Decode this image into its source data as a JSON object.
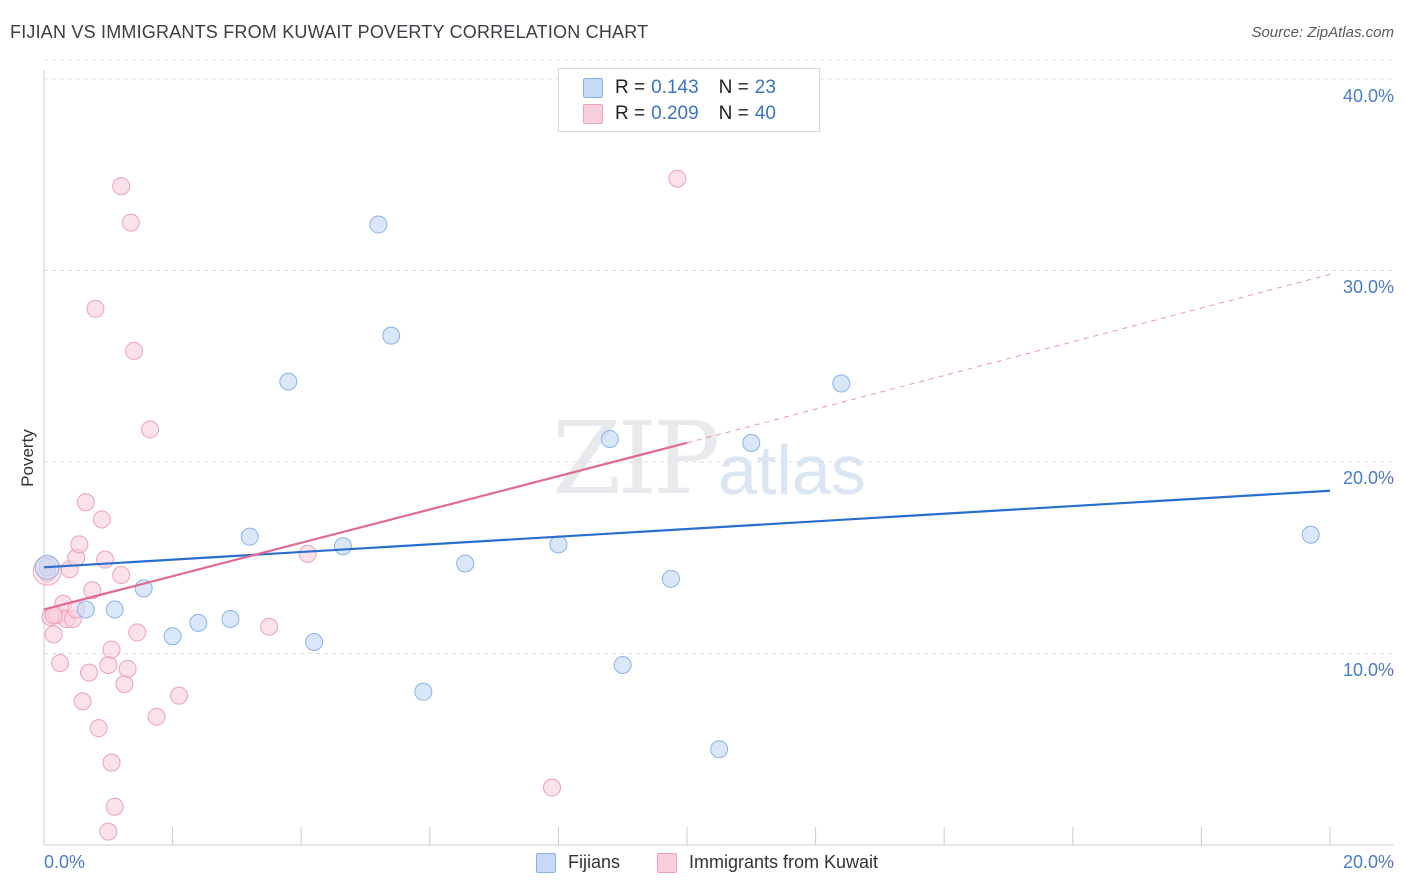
{
  "header": {
    "title": "FIJIAN VS IMMIGRANTS FROM KUWAIT POVERTY CORRELATION CHART",
    "source": "Source: ZipAtlas.com"
  },
  "watermark": {
    "zip": "ZIP",
    "atlas": "atlas"
  },
  "colors": {
    "blue": "#8ab4e8",
    "blue_fill": "#c5daf5",
    "blue_line": "#2a6fcf",
    "pink": "#f0a0b8",
    "pink_fill": "#f9cfdc",
    "pink_line": "#e06a90",
    "tick_text": "#4a7ccc"
  },
  "legend": {
    "rows": [
      {
        "r_label": "R =",
        "r_value": "0.143",
        "n_label": "N =",
        "n_value": "23"
      },
      {
        "r_label": "R =",
        "r_value": "0.209",
        "n_label": "N =",
        "n_value": "40"
      }
    ]
  },
  "bottom_legend": {
    "series1": "Fijians",
    "series2": "Immigrants from Kuwait"
  },
  "chart_data": {
    "type": "scatter",
    "title": "FIJIAN VS IMMIGRANTS FROM KUWAIT POVERTY CORRELATION CHART",
    "xlabel": "",
    "ylabel": "Poverty",
    "xlim": [
      0,
      20
    ],
    "ylim": [
      0,
      42
    ],
    "x_tick_labels": [
      "0.0%",
      "20.0%"
    ],
    "y_tick_labels": [
      "10.0%",
      "20.0%",
      "30.0%",
      "40.0%"
    ],
    "y_ticks": [
      10,
      20,
      30,
      40
    ],
    "series": [
      {
        "name": "Fijians",
        "r": 0.143,
        "n": 23,
        "points": [
          [
            0.05,
            14.5
          ],
          [
            0.65,
            12.3
          ],
          [
            1.1,
            12.3
          ],
          [
            1.55,
            13.4
          ],
          [
            2.0,
            10.9
          ],
          [
            2.4,
            11.6
          ],
          [
            2.9,
            11.8
          ],
          [
            3.2,
            16.1
          ],
          [
            3.8,
            24.2
          ],
          [
            4.2,
            10.6
          ],
          [
            4.65,
            15.6
          ],
          [
            5.2,
            32.4
          ],
          [
            5.4,
            26.6
          ],
          [
            5.9,
            8.0
          ],
          [
            6.55,
            14.7
          ],
          [
            8.0,
            15.7
          ],
          [
            8.8,
            21.2
          ],
          [
            9.0,
            9.4
          ],
          [
            9.75,
            13.9
          ],
          [
            10.5,
            5.0
          ],
          [
            11.0,
            21.0
          ],
          [
            12.4,
            24.1
          ],
          [
            19.7,
            16.2
          ]
        ],
        "trend": {
          "x0": 0,
          "y0": 14.5,
          "x1": 20,
          "y1": 18.5
        }
      },
      {
        "name": "Immigrants from Kuwait",
        "r": 0.209,
        "n": 40,
        "points": [
          [
            0.05,
            14.2
          ],
          [
            0.1,
            11.9
          ],
          [
            0.15,
            11.0
          ],
          [
            0.2,
            12.0
          ],
          [
            0.25,
            9.5
          ],
          [
            0.3,
            12.6
          ],
          [
            0.35,
            11.8
          ],
          [
            0.4,
            14.4
          ],
          [
            0.45,
            11.8
          ],
          [
            0.5,
            15.0
          ],
          [
            0.5,
            12.3
          ],
          [
            0.55,
            15.7
          ],
          [
            0.6,
            7.5
          ],
          [
            0.65,
            17.9
          ],
          [
            0.7,
            9.0
          ],
          [
            0.75,
            13.3
          ],
          [
            0.8,
            28.0
          ],
          [
            0.85,
            6.1
          ],
          [
            0.9,
            17.0
          ],
          [
            0.95,
            14.9
          ],
          [
            1.0,
            0.7
          ],
          [
            1.0,
            9.4
          ],
          [
            1.05,
            10.2
          ],
          [
            1.05,
            4.3
          ],
          [
            1.1,
            2.0
          ],
          [
            1.2,
            34.4
          ],
          [
            1.2,
            14.1
          ],
          [
            1.25,
            8.4
          ],
          [
            1.3,
            9.2
          ],
          [
            1.35,
            32.5
          ],
          [
            1.4,
            25.8
          ],
          [
            1.45,
            11.1
          ],
          [
            1.65,
            21.7
          ],
          [
            1.75,
            6.7
          ],
          [
            2.1,
            7.8
          ],
          [
            3.5,
            11.4
          ],
          [
            4.1,
            15.2
          ],
          [
            7.9,
            3.0
          ],
          [
            9.85,
            34.8
          ],
          [
            0.15,
            12.0
          ]
        ],
        "trend": {
          "x0": 0,
          "y0": 12.3,
          "x1": 10.0,
          "y1": 21.0
        },
        "trend_ext": {
          "x0": 10.0,
          "y0": 21.0,
          "x1": 20,
          "y1": 29.8
        }
      }
    ]
  }
}
